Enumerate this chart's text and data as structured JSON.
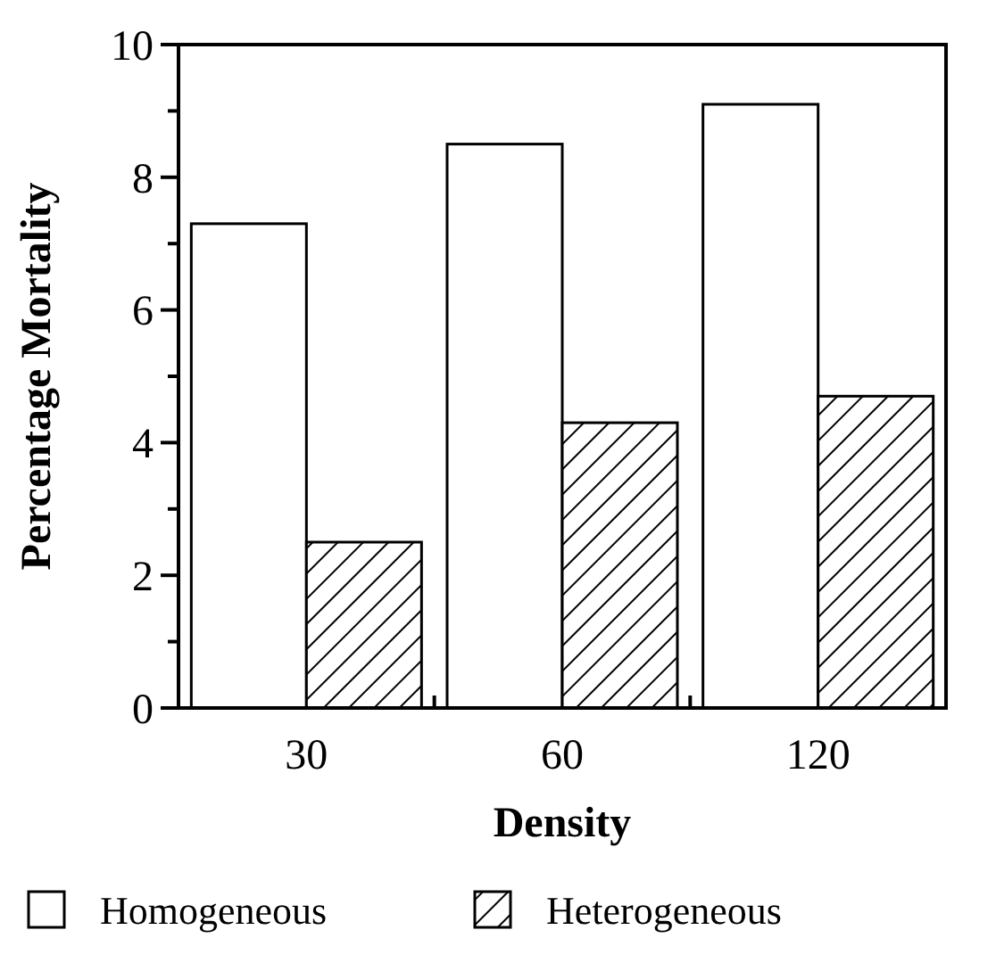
{
  "chart_data": {
    "type": "bar",
    "xlabel": "Density",
    "ylabel": "Percentage Mortality",
    "categories": [
      "30",
      "60",
      "120"
    ],
    "series": [
      {
        "name": "Homogeneous",
        "color": "#ffffff",
        "values": [
          7.3,
          8.5,
          9.1
        ]
      },
      {
        "name": "Heterogeneous",
        "color": "#000000",
        "values": [
          2.5,
          4.3,
          4.7
        ]
      }
    ],
    "ylim": [
      0,
      10
    ],
    "yticks": [
      0,
      2,
      4,
      6,
      8,
      10
    ],
    "grid": false,
    "legend": "bottom"
  }
}
